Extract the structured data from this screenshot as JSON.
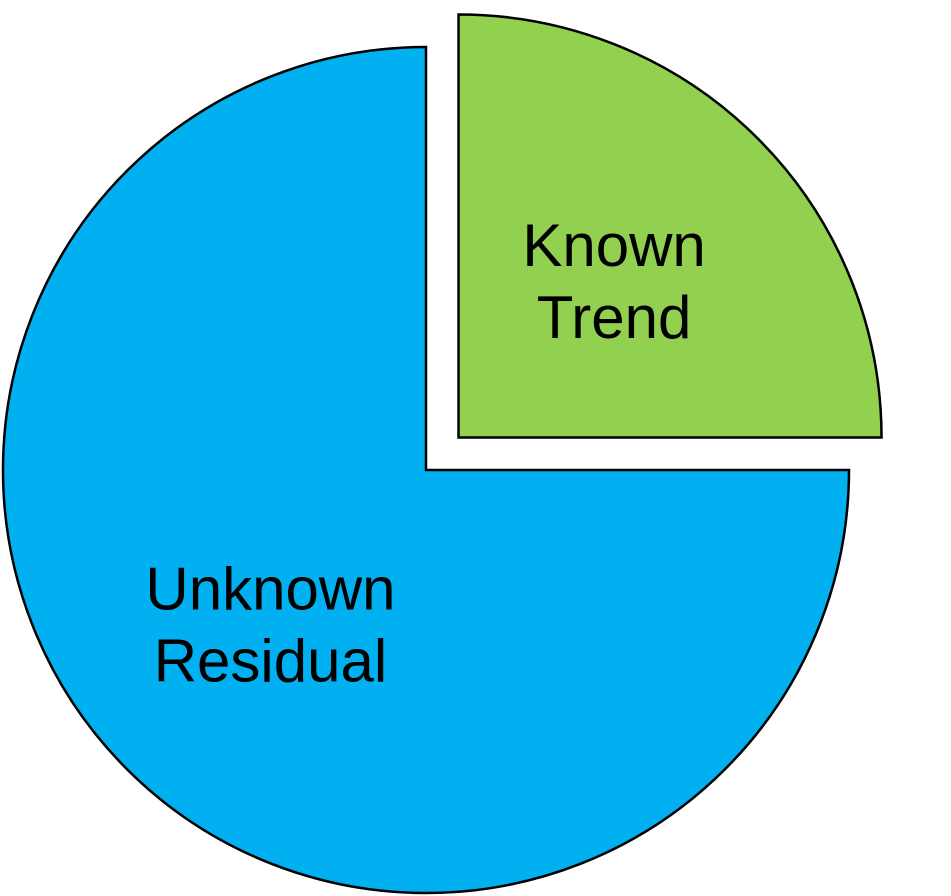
{
  "chart_data": {
    "type": "pie",
    "slices": [
      {
        "label_lines": [
          "Known",
          "Trend"
        ],
        "value": 25,
        "color": "#92d050",
        "exploded": true
      },
      {
        "label_lines": [
          "Unknown",
          "Residual"
        ],
        "value": 75,
        "color": "#00b0f0",
        "exploded": false
      }
    ],
    "start": "12 o'clock",
    "direction": "clockwise",
    "legend": "none"
  }
}
